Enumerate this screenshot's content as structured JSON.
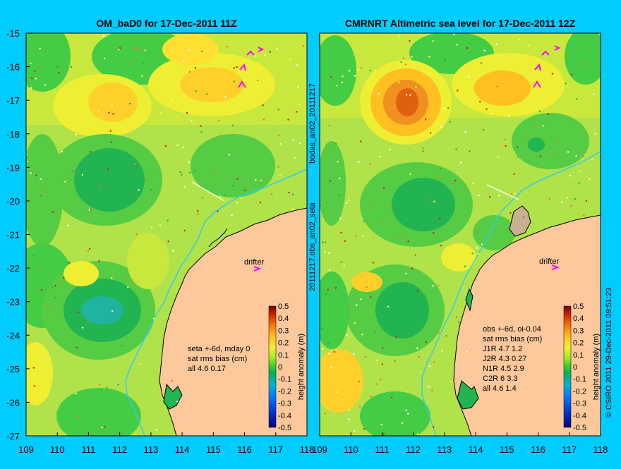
{
  "background_color": "#00ccff",
  "land_color": "#fcc89c",
  "coast_color": "#000000",
  "isobath_color": "#33ccee",
  "marker_color": "#ff00ff",
  "left_panel": {
    "title": "OM_baD0 for 17-Dec-2011 11Z",
    "annotation": [
      "seta +-6d, mday 0",
      "sat rms bias (cm)",
      "all 4.6 0.17"
    ],
    "drifter_label": "drifter"
  },
  "right_panel": {
    "title": "CMRNRT Altimetric sea level  for 17-Dec-2011 12Z",
    "annotation": [
      "obs +-6d, oi-0.04",
      "sat rms bias (cm)",
      "J1R   4.7 1.2",
      "J2R   4.3 0.27",
      "N1R   4.5 2.9",
      "C2R   6 3.3",
      "all 4.6 1.4"
    ],
    "drifter_label": "drifter"
  },
  "side_label_top": "bodas_an02_20111217",
  "side_label_bottom": "20111217.obs_an02_seta",
  "credit": "© CSIRO 2011   29-Dec-2011 09:51:23",
  "chart_data": {
    "type": "heatmap",
    "x_range": [
      109,
      118
    ],
    "y_range": [
      -27,
      -15
    ],
    "x_ticks": [
      "109",
      "110",
      "111",
      "112",
      "113",
      "114",
      "115",
      "116",
      "117",
      "118"
    ],
    "y_ticks": [
      "-15",
      "-16",
      "-17",
      "-18",
      "-19",
      "-20",
      "-21",
      "-22",
      "-23",
      "-24",
      "-25",
      "-26",
      "-27"
    ],
    "colorbar": {
      "label": "height anomaly (m)",
      "ticks": [
        "0.5",
        "0.4",
        "0.3",
        "0.2",
        "0.1",
        "0",
        "-0.1",
        "-0.2",
        "-0.3",
        "-0.4",
        "-0.5"
      ],
      "range": [
        -0.5,
        0.5
      ]
    }
  }
}
